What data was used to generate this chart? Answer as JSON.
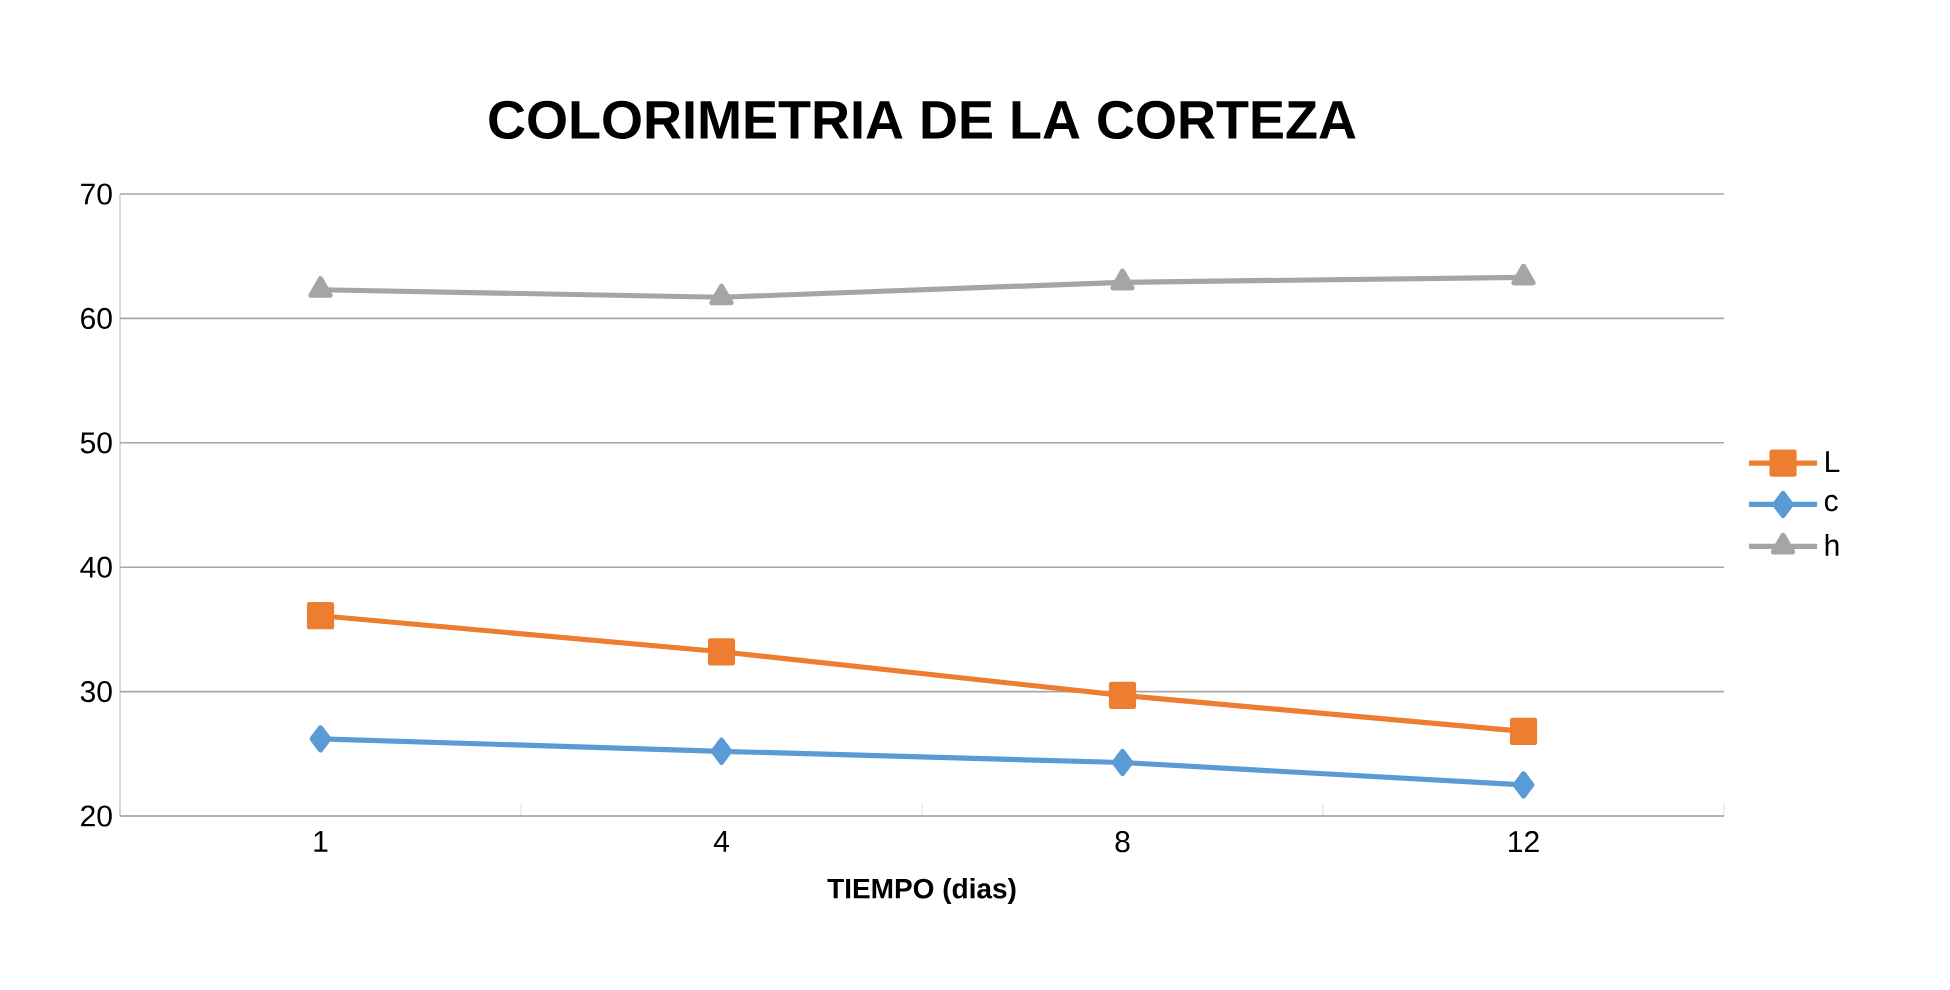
{
  "chart_data": {
    "type": "line",
    "title": "COLORIMETRIA DE LA CORTEZA",
    "xlabel": "TIEMPO (dias)",
    "categories": [
      "1",
      "4",
      "8",
      "12"
    ],
    "series": [
      {
        "name": "L",
        "color": "#ed7d31",
        "marker": "square",
        "values": [
          36.1,
          33.2,
          29.7,
          26.8
        ]
      },
      {
        "name": "c",
        "color": "#5b9bd5",
        "marker": "diamond",
        "values": [
          26.2,
          25.2,
          24.3,
          22.5
        ]
      },
      {
        "name": "h",
        "color": "#a5a5a5",
        "marker": "triangle",
        "values": [
          62.3,
          61.7,
          62.9,
          63.3
        ]
      }
    ],
    "ylim": [
      20,
      70
    ],
    "yticks": [
      20,
      30,
      40,
      50,
      60,
      70
    ],
    "grid": "y",
    "legend": "right"
  }
}
